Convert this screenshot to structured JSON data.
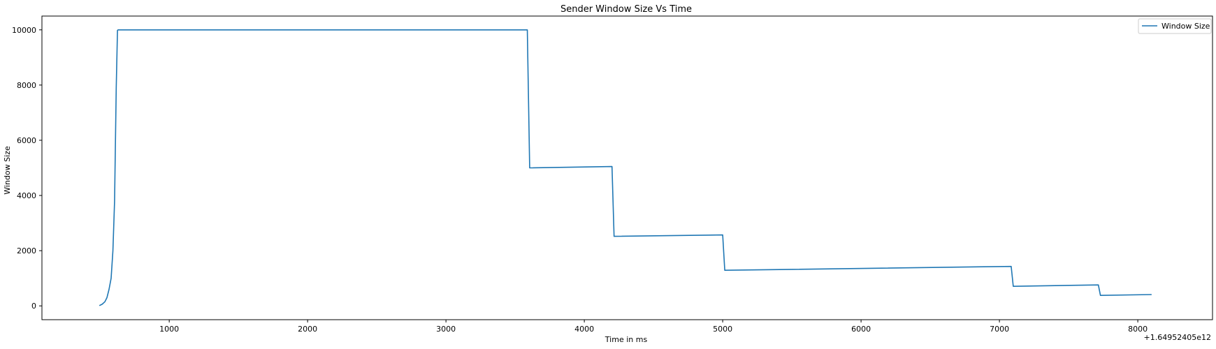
{
  "chart_data": {
    "type": "line",
    "title": "Sender Window Size Vs Time",
    "xlabel": "Time in ms",
    "ylabel": "Window Size",
    "x_offset_label": "+1.64952405e12",
    "xlim": [
      80,
      8540
    ],
    "ylim": [
      -500,
      10500
    ],
    "x_ticks": [
      1000,
      2000,
      3000,
      4000,
      5000,
      6000,
      7000,
      8000
    ],
    "y_ticks": [
      0,
      2000,
      4000,
      6000,
      8000,
      10000
    ],
    "grid": false,
    "legend_position": "top-right",
    "series": [
      {
        "name": "Window Size",
        "color": "#1f77b4",
        "x": [
          495,
          515,
          535,
          550,
          565,
          580,
          593,
          605,
          617,
          626,
          630,
          3588,
          3605,
          4200,
          4215,
          5000,
          5015,
          7085,
          7100,
          7715,
          7730,
          8100
        ],
        "y": [
          10,
          60,
          150,
          300,
          600,
          1000,
          2000,
          3800,
          7900,
          9980,
          10000,
          10000,
          5000,
          5050,
          2520,
          2570,
          1290,
          1430,
          710,
          760,
          380,
          410
        ]
      }
    ]
  }
}
